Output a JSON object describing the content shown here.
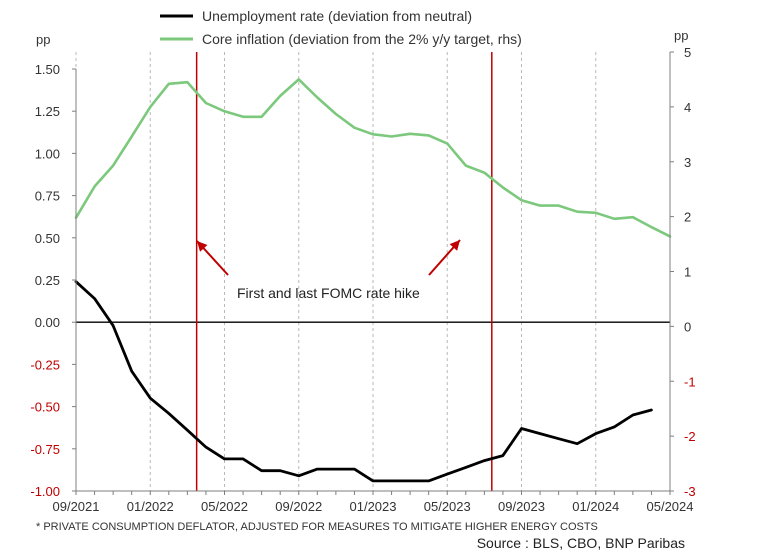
{
  "chart_data": {
    "type": "line",
    "left_axis": {
      "unit_label": "pp",
      "range": [
        -1.0,
        1.5
      ],
      "ticks": [
        "1.50",
        "1.25",
        "1.00",
        "0.75",
        "0.50",
        "0.25",
        "0.00",
        "-0.25",
        "-0.50",
        "-0.75",
        "-1.00"
      ],
      "tick_values": [
        1.5,
        1.25,
        1.0,
        0.75,
        0.5,
        0.25,
        0.0,
        -0.25,
        -0.5,
        -0.75,
        -1.0
      ]
    },
    "right_axis": {
      "unit_label": "pp",
      "range": [
        -3,
        5
      ],
      "ticks": [
        "5",
        "4",
        "3",
        "2",
        "1",
        "0",
        "-1",
        "-2",
        "-3"
      ],
      "tick_values": [
        5,
        4,
        3,
        2,
        1,
        0,
        -1,
        -2,
        -3
      ]
    },
    "x_ticks": [
      "09/2021",
      "01/2022",
      "05/2022",
      "09/2022",
      "01/2023",
      "05/2023",
      "09/2023",
      "01/2024",
      "05/2024"
    ],
    "x_tick_indices": [
      0,
      4,
      8,
      12,
      16,
      20,
      24,
      28,
      32
    ],
    "series": [
      {
        "name": "Unemployment rate (deviation from neutral)",
        "axis": "left",
        "color": "#000000",
        "values": [
          0.24,
          0.14,
          -0.02,
          -0.29,
          -0.45,
          -0.54,
          -0.64,
          -0.74,
          -0.81,
          -0.81,
          -0.88,
          -0.88,
          -0.91,
          -0.87,
          -0.87,
          -0.87,
          -0.94,
          -0.94,
          -0.94,
          -0.94,
          -0.9,
          -0.86,
          -0.82,
          -0.79,
          -0.63,
          -0.66,
          -0.69,
          -0.72,
          -0.66,
          -0.62,
          -0.55,
          -0.52
        ]
      },
      {
        "name": "Core inflation (deviation from the 2% y/y target, rhs)",
        "axis": "right",
        "color": "#7cc87c",
        "values": [
          1.98,
          2.55,
          2.93,
          3.46,
          4.0,
          4.42,
          4.45,
          4.07,
          3.92,
          3.82,
          3.82,
          4.2,
          4.5,
          4.17,
          3.87,
          3.62,
          3.5,
          3.46,
          3.51,
          3.48,
          3.33,
          2.93,
          2.8,
          2.53,
          2.3,
          2.2,
          2.2,
          2.09,
          2.07,
          1.96,
          1.99,
          1.81,
          1.64
        ]
      }
    ],
    "vertical_markers": [
      {
        "label": "First FOMC rate hike",
        "x_index": 6.5,
        "color": "#c00000"
      },
      {
        "label": "Last FOMC rate hike",
        "x_index": 22.4,
        "color": "#c00000"
      }
    ],
    "annotation": "First and last FOMC rate hike",
    "footnote": "* PRIVATE CONSUMPTION DEFLATOR,  ADJUSTED FOR  MEASURES TO MITIGATE HIGHER ENERGY COSTS",
    "source": "Source : BLS, CBO, BNP Paribas",
    "negative_tick_color": "#c00000",
    "grid": "vertical dashed"
  }
}
